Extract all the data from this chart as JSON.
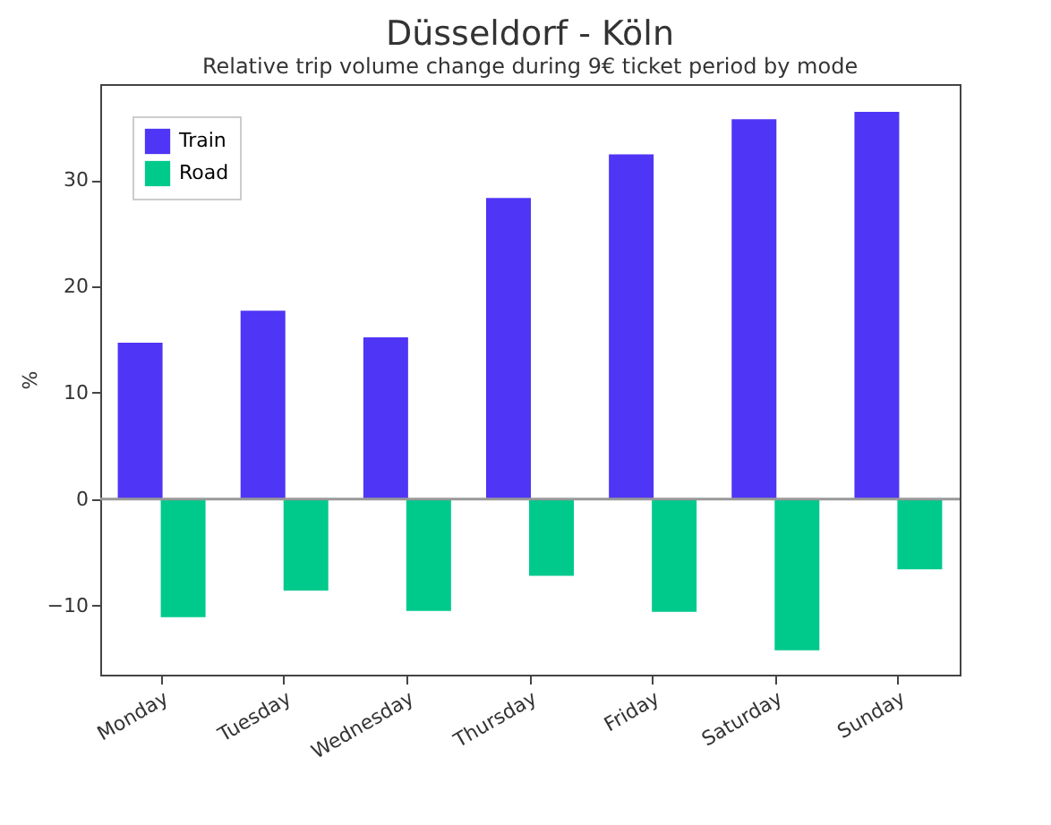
{
  "chart_data": {
    "type": "bar",
    "title": "Düsseldorf - Köln",
    "subtitle": "Relative trip volume change during 9€ ticket period by mode",
    "ylabel": "%",
    "categories": [
      "Monday",
      "Tuesday",
      "Wednesday",
      "Thursday",
      "Friday",
      "Saturday",
      "Sunday"
    ],
    "series": [
      {
        "name": "Train",
        "color": "#4f35f5",
        "values": [
          14.7,
          17.7,
          15.2,
          28.3,
          32.4,
          35.7,
          36.4
        ]
      },
      {
        "name": "Road",
        "color": "#00c98c",
        "values": [
          -11.1,
          -8.6,
          -10.5,
          -7.2,
          -10.6,
          -14.2,
          -6.6
        ]
      }
    ],
    "ylim": [
      -16.5,
      39
    ],
    "yticks": [
      -10,
      0,
      10,
      20,
      30
    ],
    "ref_lines": [
      {
        "axis": "y",
        "value": 0,
        "color": "#999999"
      }
    ],
    "grid": false,
    "legend": "top left"
  }
}
